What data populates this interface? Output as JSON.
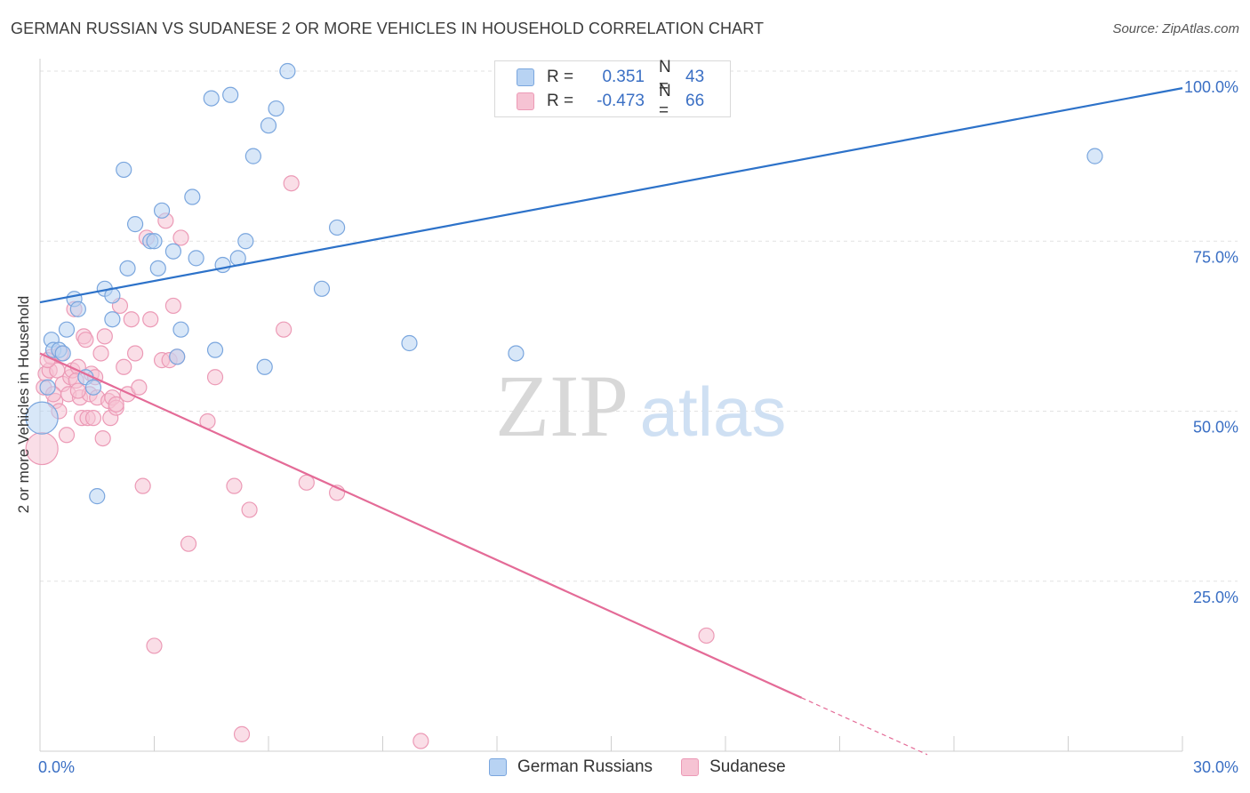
{
  "title": "GERMAN RUSSIAN VS SUDANESE 2 OR MORE VEHICLES IN HOUSEHOLD CORRELATION CHART",
  "source": "Source: ZipAtlas.com",
  "watermark": {
    "zip": "ZIP",
    "atlas": "atlas"
  },
  "legend": {
    "r_label": "R =",
    "n_label": "N =",
    "rows": [
      {
        "r": "0.351",
        "n": "43"
      },
      {
        "r": "-0.473",
        "n": "66"
      }
    ]
  },
  "colors": {
    "blue_fill": "#b8d3f3",
    "blue_stroke": "#7aa6de",
    "blue_line": "#2d72c9",
    "pink_fill": "#f6c3d3",
    "pink_stroke": "#ec9ab6",
    "pink_line": "#e46b97",
    "tick_label": "#3a6fc4",
    "grid": "#e2e2e2"
  },
  "chart_data": {
    "type": "scatter",
    "title": "GERMAN RUSSIAN VS SUDANESE 2 OR MORE VEHICLES IN HOUSEHOLD CORRELATION CHART",
    "xlabel": "",
    "ylabel": "2 or more Vehicles in Household",
    "xlim": [
      0,
      30
    ],
    "ylim": [
      0,
      100
    ],
    "x_tick_labels": [
      "0.0%",
      "30.0%"
    ],
    "y_ticks": [
      25,
      50,
      75,
      100
    ],
    "y_tick_labels": [
      "25.0%",
      "50.0%",
      "75.0%",
      "100.0%"
    ],
    "grid": true,
    "legend_position": "bottom",
    "series": [
      {
        "name": "German Russians",
        "r": 0.351,
        "n": 43,
        "trend": {
          "x": [
            0,
            30
          ],
          "y": [
            66.0,
            97.5
          ],
          "dashed_from": null
        },
        "points": [
          [
            0.3,
            60.5
          ],
          [
            0.35,
            59.0
          ],
          [
            0.5,
            59.0
          ],
          [
            0.6,
            58.5
          ],
          [
            0.7,
            62.0
          ],
          [
            0.9,
            66.5
          ],
          [
            1.0,
            65.0
          ],
          [
            1.2,
            55.0
          ],
          [
            1.4,
            53.5
          ],
          [
            1.5,
            37.5
          ],
          [
            1.7,
            68.0
          ],
          [
            1.9,
            63.5
          ],
          [
            1.9,
            67.0
          ],
          [
            2.2,
            85.5
          ],
          [
            2.3,
            71.0
          ],
          [
            2.5,
            77.5
          ],
          [
            2.9,
            75.0
          ],
          [
            3.0,
            75.0
          ],
          [
            3.1,
            71.0
          ],
          [
            3.2,
            79.5
          ],
          [
            3.5,
            73.5
          ],
          [
            3.6,
            58.0
          ],
          [
            3.7,
            62.0
          ],
          [
            4.0,
            81.5
          ],
          [
            4.1,
            72.5
          ],
          [
            4.5,
            96.0
          ],
          [
            4.6,
            59.0
          ],
          [
            4.8,
            71.5
          ],
          [
            5.0,
            96.5
          ],
          [
            5.2,
            72.5
          ],
          [
            5.4,
            75.0
          ],
          [
            5.6,
            87.5
          ],
          [
            5.9,
            56.5
          ],
          [
            6.0,
            92.0
          ],
          [
            6.2,
            94.5
          ],
          [
            6.5,
            100.0
          ],
          [
            7.4,
            68.0
          ],
          [
            7.8,
            77.0
          ],
          [
            9.7,
            60.0
          ],
          [
            12.5,
            58.5
          ],
          [
            27.7,
            87.5
          ],
          [
            0.05,
            49.0
          ],
          [
            0.2,
            53.5
          ]
        ]
      },
      {
        "name": "Sudanese",
        "r": -0.473,
        "n": 66,
        "trend": {
          "x": [
            0,
            23.3
          ],
          "y": [
            58.5,
            -0.5
          ],
          "dashed_from": 20.0
        },
        "points": [
          [
            0.05,
            44.5
          ],
          [
            0.1,
            53.5
          ],
          [
            0.15,
            55.5
          ],
          [
            0.25,
            56.0
          ],
          [
            0.3,
            58.0
          ],
          [
            0.4,
            51.5
          ],
          [
            0.45,
            56.0
          ],
          [
            0.5,
            50.0
          ],
          [
            0.6,
            54.0
          ],
          [
            0.7,
            46.5
          ],
          [
            0.75,
            52.5
          ],
          [
            0.8,
            55.0
          ],
          [
            0.85,
            56.0
          ],
          [
            0.9,
            65.0
          ],
          [
            1.0,
            56.5
          ],
          [
            1.05,
            52.0
          ],
          [
            1.1,
            49.0
          ],
          [
            1.15,
            61.0
          ],
          [
            1.2,
            60.5
          ],
          [
            1.25,
            49.0
          ],
          [
            1.3,
            52.5
          ],
          [
            1.35,
            55.5
          ],
          [
            1.4,
            49.0
          ],
          [
            1.5,
            52.0
          ],
          [
            1.6,
            58.5
          ],
          [
            1.65,
            46.0
          ],
          [
            1.7,
            61.0
          ],
          [
            1.8,
            51.5
          ],
          [
            1.85,
            49.0
          ],
          [
            1.9,
            52.0
          ],
          [
            2.0,
            50.5
          ],
          [
            2.1,
            65.5
          ],
          [
            2.2,
            56.5
          ],
          [
            2.3,
            52.5
          ],
          [
            2.4,
            63.5
          ],
          [
            2.5,
            58.5
          ],
          [
            2.6,
            53.5
          ],
          [
            2.7,
            39.0
          ],
          [
            2.8,
            75.5
          ],
          [
            2.9,
            63.5
          ],
          [
            3.0,
            15.5
          ],
          [
            3.2,
            57.5
          ],
          [
            3.3,
            78.0
          ],
          [
            3.4,
            57.5
          ],
          [
            3.5,
            65.5
          ],
          [
            3.6,
            58.0
          ],
          [
            3.7,
            75.5
          ],
          [
            3.9,
            30.5
          ],
          [
            4.4,
            48.5
          ],
          [
            4.6,
            55.0
          ],
          [
            5.1,
            39.0
          ],
          [
            5.3,
            2.5
          ],
          [
            5.5,
            35.5
          ],
          [
            6.4,
            62.0
          ],
          [
            6.6,
            83.5
          ],
          [
            7.0,
            39.5
          ],
          [
            7.8,
            38.0
          ],
          [
            10.0,
            1.5
          ],
          [
            17.5,
            17.0
          ],
          [
            0.2,
            57.5
          ],
          [
            0.55,
            58.5
          ],
          [
            0.95,
            54.5
          ],
          [
            1.45,
            55.0
          ],
          [
            2.0,
            51.0
          ],
          [
            0.35,
            52.5
          ],
          [
            1.0,
            53.0
          ]
        ]
      }
    ]
  }
}
